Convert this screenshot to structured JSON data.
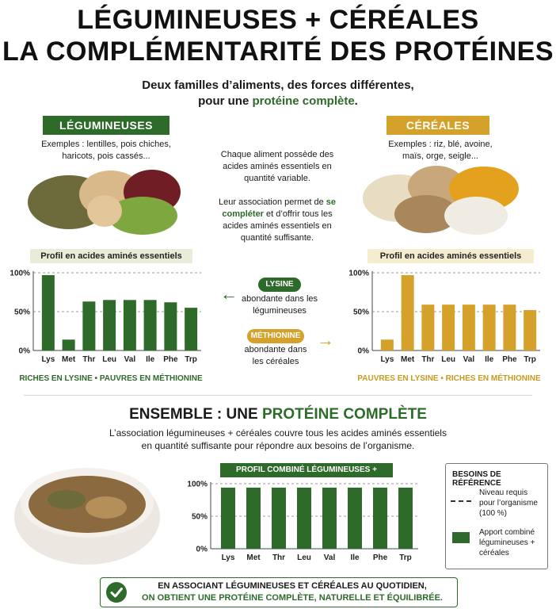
{
  "title_line1": "LÉGUMINEUSES + CÉRÉALES",
  "title_line2": "LA COMPLÉMENTARITÉ DES PROTÉINES",
  "subtitle_line1": "Deux familles d’aliments, des forces différentes,",
  "subtitle_line2_pre": "pour une ",
  "subtitle_line2_em": "protéine complète",
  "subtitle_line2_post": ".",
  "legumes": {
    "tag": "LÉGUMINEUSES",
    "examples": "Exemples : lentilles, pois chiches, haricots, pois cassés...",
    "profile_title": "Profil en acides aminés essentiels",
    "summary": "RICHES EN LYSINE • PAUVRES EN MÉTHIONINE"
  },
  "cereals": {
    "tag": "CÉRÉALES",
    "examples": "Exemples : riz, blé, avoine, maïs, orge, seigle...",
    "profile_title": "Profil en acides aminés essentiels",
    "summary": "PAUVRES EN LYSINE • RICHES EN MÉTHIONINE"
  },
  "middle": {
    "p1": "Chaque aliment possède des acides aminés essentiels en quantité variable.",
    "p2_pre": "Leur association permet de ",
    "p2_em": "se compléter",
    "p2_post": " et d’offrir tous les acides aminés essentiels en quantité suffisante.",
    "lysine_pill": "LYSINE",
    "lysine_text": "abondante dans les légumineuses",
    "methionine_pill": "MÉTHIONINE",
    "methionine_text": "abondante dans les céréales",
    "arrow_left": "←",
    "arrow_right": "→"
  },
  "together": {
    "heading_pre": "ENSEMBLE : UNE ",
    "heading_em": "PROTÉINE COMPLÈTE",
    "line1": "L’association légumineuses + céréales couvre tous les acides aminés essentiels",
    "line2": "en quantité suffisante pour répondre aux besoins de l’organisme.",
    "combined_title": "PROFIL COMBINÉ LÉGUMINEUSES + CÉRÉALES"
  },
  "legend": {
    "title": "BESOINS DE RÉFÉRENCE",
    "dashed_label": "Niveau requis pour l’organisme (100 %)",
    "bar_label": "Apport combiné légumineuses + céréales"
  },
  "footer": {
    "line1": "EN ASSOCIANT LÉGUMINEUSES ET CÉRÉALES AU QUOTIDIEN,",
    "line2": "ON OBTIENT UNE PROTÉINE COMPLÈTE, NATURELLE ET ÉQUILIBRÉE."
  },
  "colors": {
    "green": "#2e6b2a",
    "gold": "#d4a22a",
    "gold_text": "#c99a1e"
  },
  "chart_data": [
    {
      "type": "bar",
      "name_ref": "legumes",
      "categories": [
        "Lys",
        "Met",
        "Thr",
        "Leu",
        "Val",
        "Ile",
        "Phe",
        "Trp"
      ],
      "values": [
        97,
        14,
        63,
        65,
        65,
        65,
        62,
        55
      ],
      "y_ticks": [
        "0%",
        "50%",
        "100%"
      ],
      "ylim": [
        0,
        100
      ],
      "color": "#2e6b2a"
    },
    {
      "type": "bar",
      "name_ref": "cereals",
      "categories": [
        "Lys",
        "Met",
        "Thr",
        "Leu",
        "Val",
        "Ile",
        "Phe",
        "Trp"
      ],
      "values": [
        14,
        97,
        59,
        59,
        59,
        59,
        59,
        52
      ],
      "y_ticks": [
        "0%",
        "50%",
        "100%"
      ],
      "ylim": [
        0,
        100
      ],
      "color": "#d4a22a"
    },
    {
      "type": "bar",
      "name_ref": "combined",
      "categories": [
        "Lys",
        "Met",
        "Thr",
        "Leu",
        "Val",
        "Ile",
        "Phe",
        "Trp"
      ],
      "values": [
        94,
        94,
        94,
        94,
        94,
        94,
        94,
        94
      ],
      "y_ticks": [
        "0%",
        "50%",
        "100%"
      ],
      "ylim": [
        0,
        100
      ],
      "color": "#2e6b2a"
    }
  ]
}
